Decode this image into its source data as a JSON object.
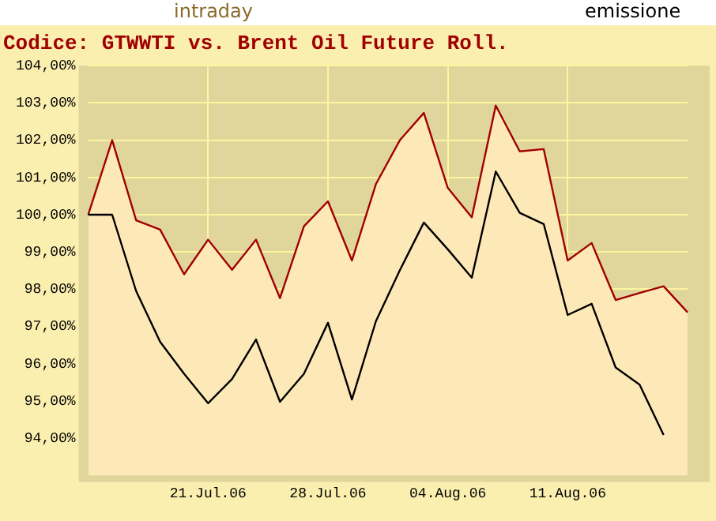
{
  "chart_data": {
    "type": "line",
    "title": "Codice: GTWWTI vs. Brent Oil Future Roll.",
    "annotations": [
      "intraday",
      "emissione"
    ],
    "categories": [
      null,
      null,
      null,
      null,
      null,
      "21.Jul.06",
      null,
      null,
      null,
      null,
      "28.Jul.06",
      null,
      null,
      null,
      null,
      "04.Aug.06",
      null,
      null,
      null,
      null,
      "11.Aug.06",
      null,
      null,
      null,
      null,
      null
    ],
    "series": [
      {
        "type": "area",
        "color": "#a00000",
        "values": [
          100.0,
          102.0,
          99.85,
          99.6,
          98.4,
          99.33,
          98.52,
          99.33,
          97.76,
          99.69,
          100.36,
          98.77,
          100.82,
          102.0,
          102.73,
          100.72,
          99.93,
          102.93,
          101.7,
          101.76,
          98.77,
          99.24,
          97.71,
          97.9,
          98.08,
          97.38
        ]
      },
      {
        "type": "line",
        "color": "#000000",
        "values": [
          100.0,
          100.0,
          97.95,
          96.59,
          95.73,
          94.94,
          95.59,
          96.65,
          94.98,
          95.73,
          97.1,
          95.04,
          97.14,
          98.51,
          99.79,
          99.07,
          98.31,
          101.16,
          100.05,
          99.75,
          97.31,
          97.61,
          95.9,
          95.44,
          94.09,
          null
        ]
      }
    ],
    "ylim": [
      93,
      104
    ],
    "yticks": [
      {
        "value": 94,
        "label": "94,00%"
      },
      {
        "value": 95,
        "label": "95,00%"
      },
      {
        "value": 96,
        "label": "96,00%"
      },
      {
        "value": 97,
        "label": "97,00%"
      },
      {
        "value": 98,
        "label": "98,00%"
      },
      {
        "value": 99,
        "label": "99,00%"
      },
      {
        "value": 100,
        "label": "100,00%"
      },
      {
        "value": 101,
        "label": "101,00%"
      },
      {
        "value": 102,
        "label": "102,00%"
      },
      {
        "value": 103,
        "label": "103,00%"
      },
      {
        "value": 104,
        "label": "104,00%"
      }
    ],
    "grid": true,
    "legend": false,
    "marker": "none",
    "line_style": "solid"
  }
}
